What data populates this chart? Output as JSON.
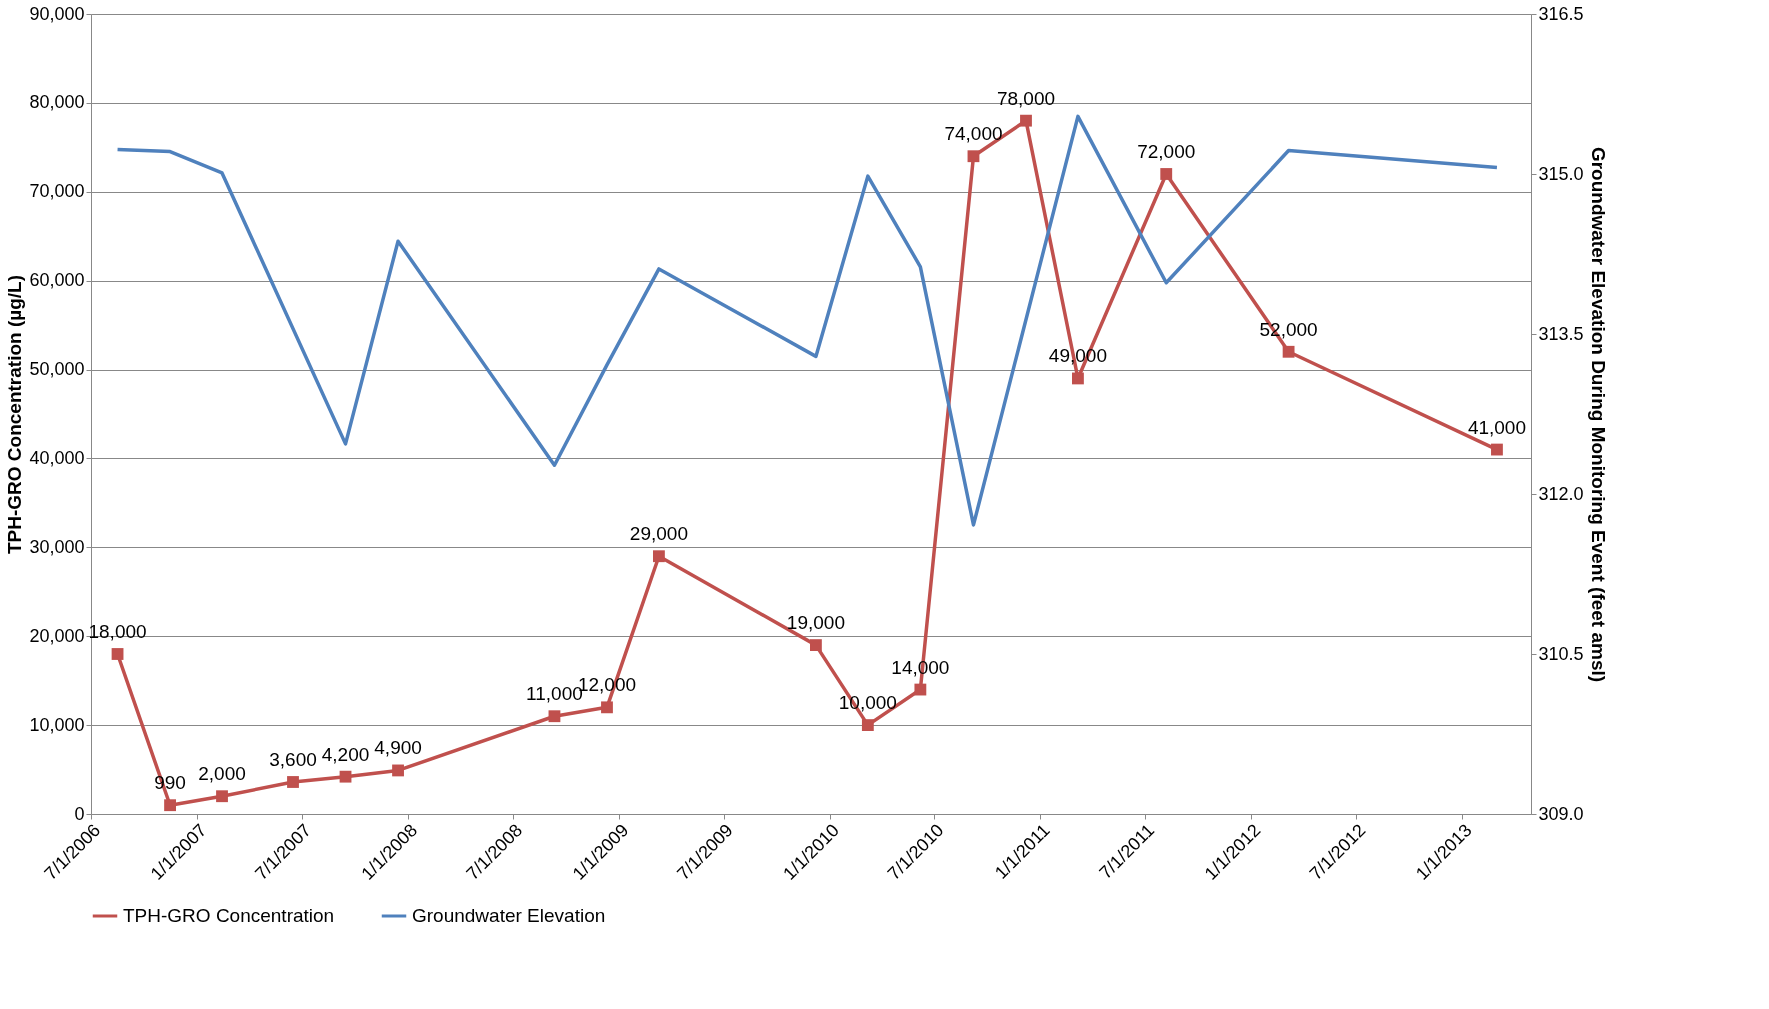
{
  "chart_data": {
    "type": "line",
    "xlabel": null,
    "ylabel": "TPH-GRO Concentration (µg/L)",
    "y2label": "Groundwater Elevation During Monitoring Event (feet amsl)",
    "xlim": [
      "2006-07-01",
      "2013-04-30"
    ],
    "xticks": [
      {
        "value": "2006-07-01",
        "label": "7/1/2006"
      },
      {
        "value": "2007-01-01",
        "label": "1/1/2007"
      },
      {
        "value": "2007-07-01",
        "label": "7/1/2007"
      },
      {
        "value": "2008-01-01",
        "label": "1/1/2008"
      },
      {
        "value": "2008-07-01",
        "label": "7/1/2008"
      },
      {
        "value": "2009-01-01",
        "label": "1/1/2009"
      },
      {
        "value": "2009-07-01",
        "label": "7/1/2009"
      },
      {
        "value": "2010-01-01",
        "label": "1/1/2010"
      },
      {
        "value": "2010-07-01",
        "label": "7/1/2010"
      },
      {
        "value": "2011-01-01",
        "label": "1/1/2011"
      },
      {
        "value": "2011-07-01",
        "label": "7/1/2011"
      },
      {
        "value": "2012-01-01",
        "label": "1/1/2012"
      },
      {
        "value": "2012-07-01",
        "label": "7/1/2012"
      },
      {
        "value": "2013-01-01",
        "label": "1/1/2013"
      }
    ],
    "ylim": [
      0,
      90000
    ],
    "yticks": [
      {
        "value": 0,
        "label": "0"
      },
      {
        "value": 10000,
        "label": "10,000"
      },
      {
        "value": 20000,
        "label": "20,000"
      },
      {
        "value": 30000,
        "label": "30,000"
      },
      {
        "value": 40000,
        "label": "40,000"
      },
      {
        "value": 50000,
        "label": "50,000"
      },
      {
        "value": 60000,
        "label": "60,000"
      },
      {
        "value": 70000,
        "label": "70,000"
      },
      {
        "value": 80000,
        "label": "80,000"
      },
      {
        "value": 90000,
        "label": "90,000"
      }
    ],
    "y2lim": [
      309,
      316.5
    ],
    "y2ticks": [
      {
        "value": 309,
        "label": "309.0"
      },
      {
        "value": 310.5,
        "label": "310.5"
      },
      {
        "value": 312,
        "label": "312.0"
      },
      {
        "value": 313.5,
        "label": "313.5"
      },
      {
        "value": 315,
        "label": "315.0"
      },
      {
        "value": 316.5,
        "label": "316.5"
      }
    ],
    "grid": "y",
    "legend": "bottom",
    "series": [
      {
        "name": "TPH-GRO Concentration",
        "color": "#c0504d",
        "marker": "square",
        "x": [
          "2006-08-16",
          "2006-11-15",
          "2007-02-13",
          "2007-06-16",
          "2007-09-15",
          "2007-12-15",
          "2008-09-11",
          "2008-12-11",
          "2009-03-11",
          "2009-12-08",
          "2010-03-08",
          "2010-06-07",
          "2010-09-07",
          "2010-12-07",
          "2011-03-07",
          "2011-08-07",
          "2012-03-06",
          "2013-03-02"
        ],
        "values": [
          18000,
          990,
          2000,
          3600,
          4200,
          4900,
          11000,
          12000,
          29000,
          19000,
          10000,
          14000,
          74000,
          78000,
          49000,
          72000,
          52000,
          41000
        ],
        "value_labels": [
          "18,000",
          "990",
          "2,000",
          "3,600",
          "4,200",
          "4,900",
          "11,000",
          "12,000",
          "29,000",
          "19,000",
          "10,000",
          "14,000",
          "74,000",
          "78,000",
          "49,000",
          "72,000",
          "52,000",
          "41,000"
        ]
      },
      {
        "name": "Groundwater Elevation",
        "color": "#4f81bd",
        "marker": "none",
        "axis": "y2",
        "x": [
          "2006-08-16",
          "2006-11-15",
          "2007-02-13",
          "2007-09-15",
          "2007-12-15",
          "2008-09-11",
          "2008-12-11",
          "2009-03-11",
          "2009-12-08",
          "2010-03-08",
          "2010-06-07",
          "2010-09-07",
          "2011-03-07",
          "2011-08-07",
          "2012-03-06",
          "2013-03-02"
        ],
        "values": [
          315.23,
          315.21,
          315.01,
          312.47,
          314.37,
          312.27,
          313.21,
          314.11,
          313.29,
          314.98,
          314.13,
          311.71,
          315.54,
          313.98,
          315.22,
          315.06
        ]
      }
    ]
  }
}
